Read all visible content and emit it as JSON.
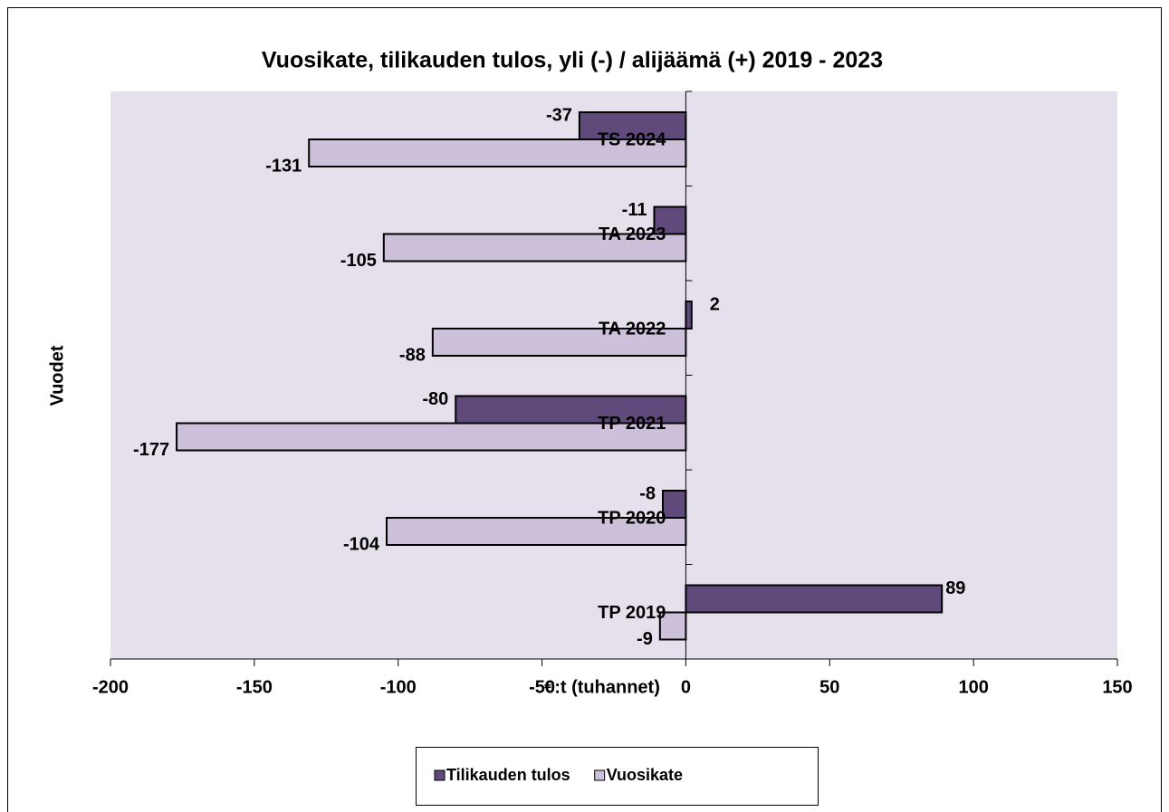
{
  "chart_data": {
    "type": "bar",
    "orientation": "horizontal",
    "title": "Vuosikate, tilikauden tulos, yli (-) / alijäämä (+) 2019 - 2023",
    "x_label": "€:t (tuhannet)",
    "y_label": "Vuodet",
    "categories": [
      "TP 2019",
      "TP 2020",
      "TP 2021",
      "TA 2022",
      "TA 2023",
      "TS 2024"
    ],
    "series": [
      {
        "name": "Tilikauden tulos",
        "color": "#604a7b",
        "values": [
          89,
          -8,
          -80,
          2,
          -11,
          -37
        ]
      },
      {
        "name": "Vuosikate",
        "color": "#ccc0da",
        "values": [
          -9,
          -104,
          -177,
          -88,
          -105,
          -131
        ]
      }
    ],
    "xlim": [
      -200,
      150
    ],
    "xticks": [
      -200,
      -150,
      -100,
      -50,
      0,
      50,
      100,
      150
    ],
    "plot_background": "#e6e0ec",
    "legend": "bottom"
  }
}
